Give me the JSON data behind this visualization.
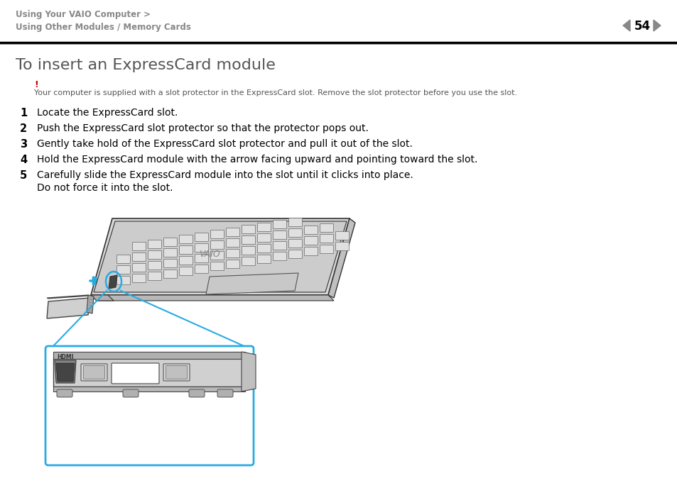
{
  "bg_color": "#ffffff",
  "header_line1": "Using Your VAIO Computer >",
  "header_line2": "Using Other Modules / Memory Cards",
  "page_number": "54",
  "header_text_color": "#888888",
  "title": "To insert an ExpressCard module",
  "title_color": "#555555",
  "title_fontsize": 16,
  "exclamation": "!",
  "exclamation_color": "#cc0000",
  "warning_text": "Your computer is supplied with a slot protector in the ExpressCard slot. Remove the slot protector before you use the slot.",
  "warning_color": "#555555",
  "warning_fontsize": 8,
  "steps": [
    {
      "num": "1",
      "text": "Locate the ExpressCard slot."
    },
    {
      "num": "2",
      "text": "Push the ExpressCard slot protector so that the protector pops out."
    },
    {
      "num": "3",
      "text": "Gently take hold of the ExpressCard slot protector and pull it out of the slot."
    },
    {
      "num": "4",
      "text": "Hold the ExpressCard module with the arrow facing upward and pointing toward the slot."
    },
    {
      "num": "5",
      "text": "Carefully slide the ExpressCard module into the slot until it clicks into place.\nDo not force it into the slot."
    }
  ],
  "step_color": "#000000",
  "step_fontsize": 10,
  "step_num_fontsize": 10.5,
  "header_separator_color": "#000000",
  "arrow_color": "#29abe2",
  "zoom_box_color": "#29abe2",
  "laptop_body_color": "#d8d8d8",
  "laptop_outline_color": "#333333"
}
